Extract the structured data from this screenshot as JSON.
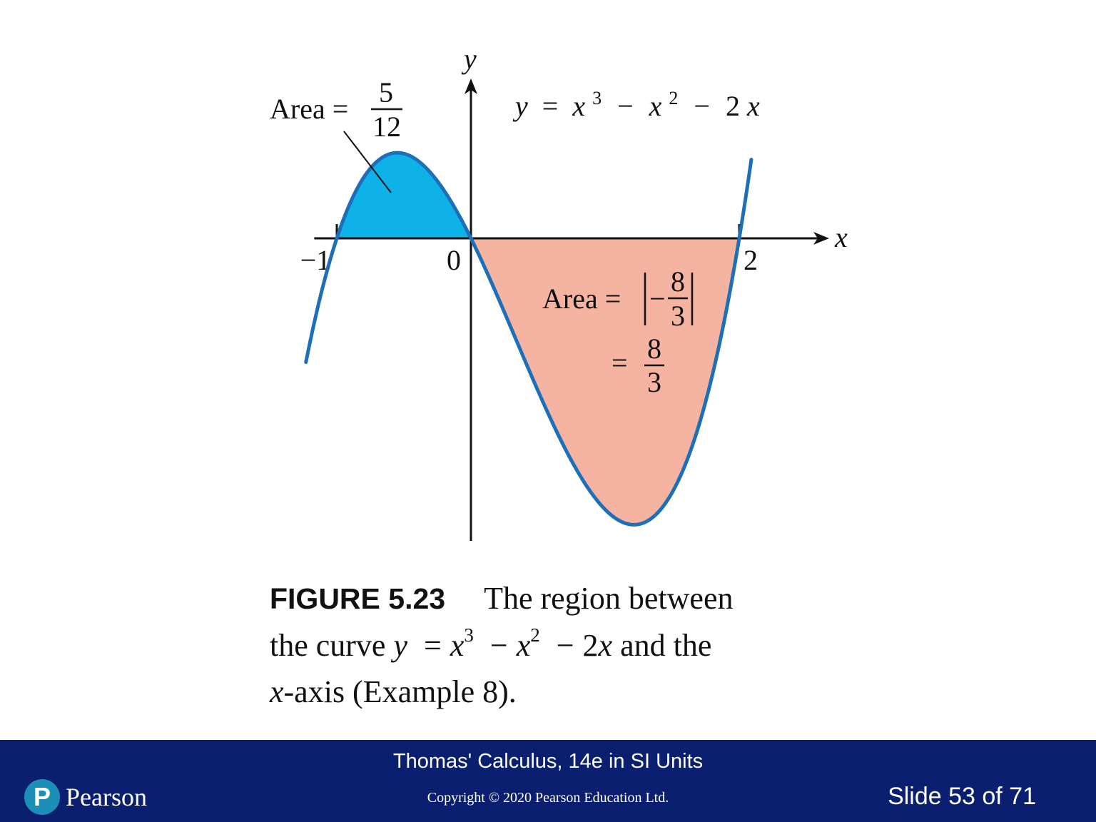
{
  "chart_data": {
    "type": "line",
    "title": "y = x³ − x² − 2x",
    "equation": {
      "lhs": "y",
      "eq": "=",
      "x1": "x",
      "e1": "3",
      "minus1": "−",
      "x2": "x",
      "e2": "2",
      "minus2": "−",
      "coef": "2",
      "x3": "x"
    },
    "xlabel": "x",
    "ylabel": "y",
    "xlim": [
      -1.2,
      2.5
    ],
    "ylim": [
      -2.2,
      1.6
    ],
    "x_ticks": [
      {
        "value": -1,
        "label": "−1"
      },
      {
        "value": 0,
        "label": "0"
      },
      {
        "value": 2,
        "label": "2"
      }
    ],
    "series": [
      {
        "x": [
          -1.0,
          -0.9,
          -0.8,
          -0.7,
          -0.6,
          -0.5,
          -0.4,
          -0.3,
          -0.2,
          -0.1,
          0.0,
          0.25,
          0.5,
          0.75,
          1.0,
          1.25,
          1.5,
          1.75,
          2.0,
          2.1
        ],
        "y": [
          0.0,
          0.261,
          0.448,
          0.567,
          0.624,
          0.625,
          0.576,
          0.483,
          0.352,
          0.189,
          0.0,
          -0.547,
          -1.125,
          -1.641,
          -2.0,
          -2.109,
          -1.875,
          -1.203,
          0.0,
          0.651
        ]
      }
    ],
    "regions": [
      {
        "from": -1,
        "to": 0,
        "fill": "#0db2e8",
        "area_label": {
          "prefix": "Area =",
          "num": "5",
          "den": "12"
        }
      },
      {
        "from": 0,
        "to": 2,
        "fill": "#f5b4a2",
        "area_label": {
          "prefix": "Area =",
          "sign": "−",
          "num": "8",
          "den": "3",
          "eq": "=",
          "num2": "8",
          "den2": "3"
        }
      }
    ],
    "colors": {
      "curve": "#1f6fb8",
      "axis": "#111111"
    },
    "grid": false
  },
  "caption": {
    "label": "FIGURE 5.23",
    "line1": "The region between",
    "line2_pre": "the curve",
    "y": "y",
    "eq": "=",
    "x1": "x",
    "e1": "3",
    "minus1": "−",
    "x2": "x",
    "e2": "2",
    "minus2": "−",
    "coef": "2",
    "x3": "x",
    "line2_post": "and the",
    "x4": "x",
    "line3_post": "-axis (Example 8)."
  },
  "footer": {
    "title": "Thomas' Calculus, 14e in SI Units",
    "copyright": "Copyright © 2020 Pearson Education Ltd.",
    "slide": "Slide 53 of 71",
    "logo_text": "Pearson",
    "logo_letter": "P",
    "background": "#0b1f71"
  }
}
